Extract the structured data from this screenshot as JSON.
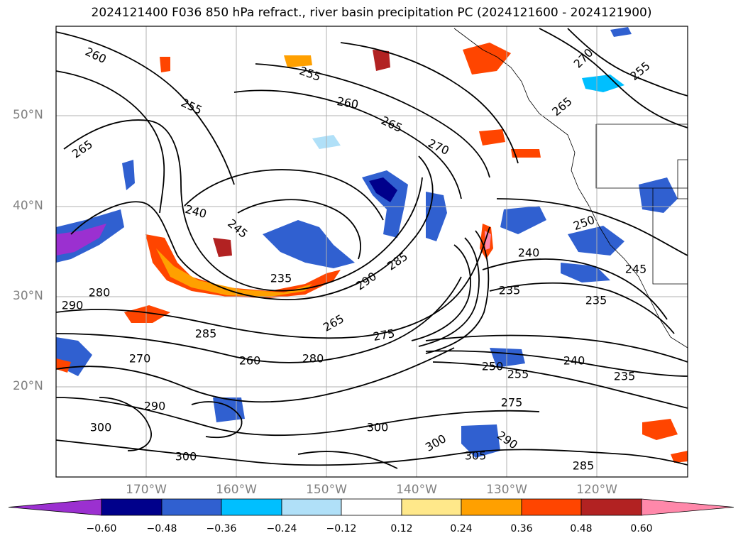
{
  "title": "2024121400 F036 850 hPa refract., river basin precipitation PC (2024121600 - 2024121900)",
  "map": {
    "lat_labels": [
      "50°N",
      "40°N",
      "30°N",
      "20°N"
    ],
    "lon_labels": [
      "170°W",
      "160°W",
      "150°W",
      "140°W",
      "130°W",
      "120°W"
    ],
    "contour_labels": [
      "260",
      "255",
      "255",
      "260",
      "265",
      "270",
      "270",
      "265",
      "265",
      "255",
      "240",
      "245",
      "240",
      "250",
      "235",
      "285",
      "280",
      "290",
      "285",
      "290",
      "270",
      "260",
      "265",
      "275",
      "280",
      "240",
      "250",
      "235",
      "255",
      "235",
      "290",
      "300",
      "300",
      "300",
      "305",
      "290",
      "275",
      "300",
      "285",
      "235",
      "245"
    ]
  },
  "colorbar": {
    "ticks": [
      "−0.60",
      "−0.48",
      "−0.36",
      "−0.24",
      "−0.12",
      "0.12",
      "0.24",
      "0.36",
      "0.48",
      "0.60"
    ],
    "colors": [
      "#9b30d0",
      "#00008b",
      "#3060d0",
      "#00bfff",
      "#b0e0f8",
      "#ffffff",
      "#ffe88a",
      "#ffa000",
      "#ff4500",
      "#b22222",
      "#ff88aa"
    ]
  }
}
